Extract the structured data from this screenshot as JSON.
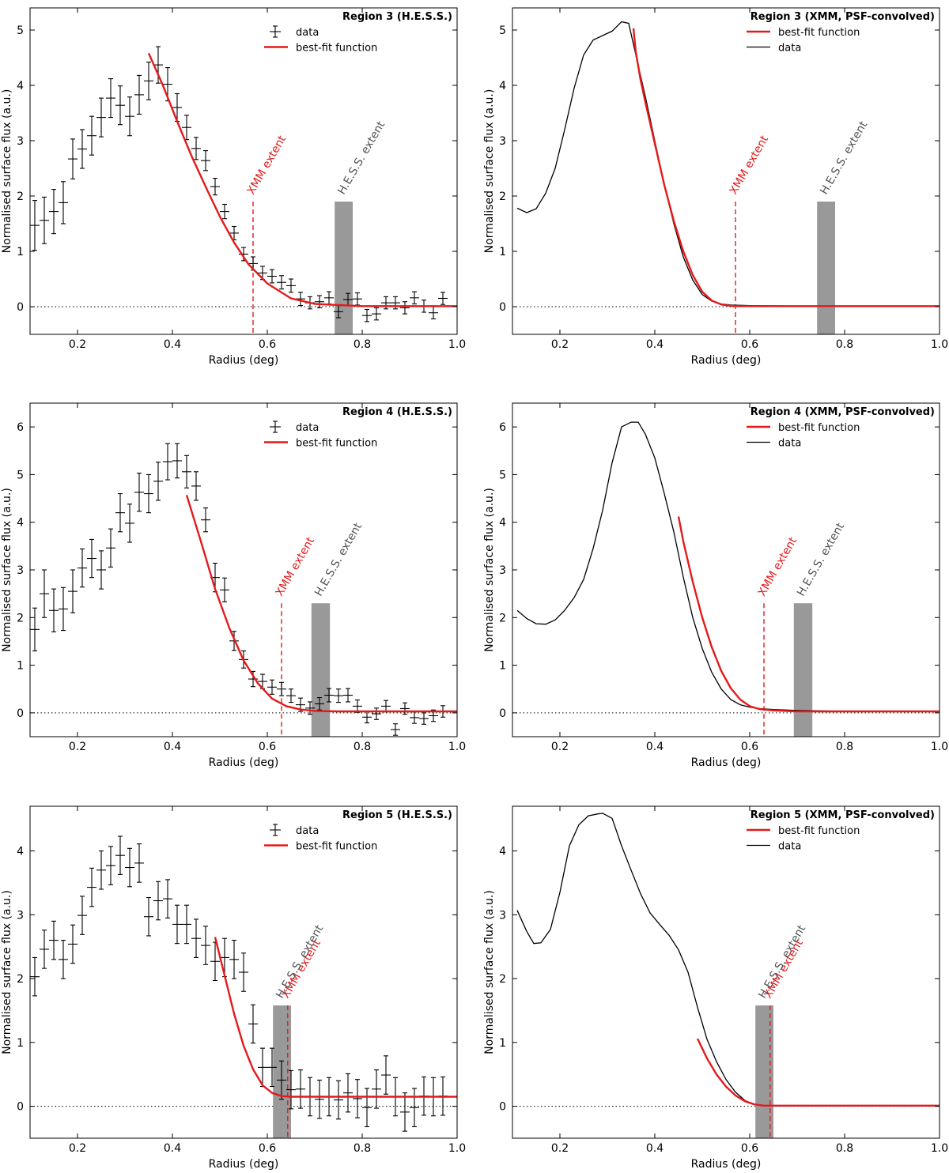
{
  "colors": {
    "fit": "#e31a1c",
    "data": "#000000",
    "band": "#999999",
    "xmm_extent": "#e31a1c",
    "hess_extent": "#555555"
  },
  "chart_data": [
    {
      "type": "scatter",
      "title": "Region 3 (H.E.S.S.)",
      "xlabel": "Radius (deg)",
      "ylabel": "Normalised surface flux (a.u.)",
      "xlim": [
        0.1,
        1.0
      ],
      "ylim": [
        -0.5,
        5.4
      ],
      "xticks": [
        "0.2",
        "0.4",
        "0.6",
        "0.8",
        "1.0"
      ],
      "yticks": [
        "0",
        "1",
        "2",
        "3",
        "4",
        "5"
      ],
      "legend": {
        "placement": "top-right",
        "entries": [
          "data",
          "best-fit function"
        ]
      },
      "data_series": {
        "name": "data",
        "xerr": 0.01,
        "x": [
          0.11,
          0.13,
          0.15,
          0.17,
          0.19,
          0.21,
          0.23,
          0.25,
          0.27,
          0.29,
          0.31,
          0.33,
          0.35,
          0.37,
          0.39,
          0.41,
          0.43,
          0.45,
          0.47,
          0.49,
          0.51,
          0.53,
          0.55,
          0.57,
          0.59,
          0.61,
          0.63,
          0.65,
          0.67,
          0.69,
          0.71,
          0.73,
          0.75,
          0.77,
          0.79,
          0.81,
          0.83,
          0.85,
          0.87,
          0.89,
          0.91,
          0.93,
          0.95,
          0.97
        ],
        "y": [
          1.47,
          1.56,
          1.72,
          1.88,
          2.67,
          2.85,
          3.09,
          3.42,
          3.77,
          3.64,
          3.44,
          3.83,
          4.08,
          4.37,
          4.02,
          3.6,
          3.24,
          2.86,
          2.64,
          2.17,
          1.72,
          1.33,
          0.95,
          0.78,
          0.61,
          0.55,
          0.44,
          0.38,
          0.14,
          0.07,
          0.09,
          0.16,
          -0.09,
          0.13,
          0.14,
          -0.16,
          -0.13,
          0.07,
          0.07,
          -0.02,
          0.16,
          0.01,
          -0.11,
          0.15
        ],
        "yerr": [
          0.45,
          0.42,
          0.4,
          0.38,
          0.36,
          0.35,
          0.35,
          0.35,
          0.35,
          0.35,
          0.35,
          0.35,
          0.34,
          0.33,
          0.3,
          0.25,
          0.22,
          0.2,
          0.18,
          0.15,
          0.13,
          0.12,
          0.12,
          0.12,
          0.12,
          0.12,
          0.12,
          0.12,
          0.12,
          0.11,
          0.11,
          0.11,
          0.11,
          0.11,
          0.11,
          0.11,
          0.11,
          0.11,
          0.11,
          0.11,
          0.11,
          0.11,
          0.11,
          0.11
        ]
      },
      "fit": {
        "name": "best-fit function",
        "x0": 0.35,
        "base": 0.01,
        "x": [
          0.35,
          0.38,
          0.41,
          0.44,
          0.47,
          0.5,
          0.53,
          0.56,
          0.6,
          0.65,
          0.7,
          0.8,
          0.9,
          1.0
        ],
        "y": [
          4.58,
          4.0,
          3.35,
          2.73,
          2.17,
          1.63,
          1.16,
          0.77,
          0.42,
          0.15,
          0.05,
          0.01,
          0.01,
          0.01
        ]
      },
      "xmm_extent": {
        "label": "XMM extent",
        "x": 0.57,
        "y_top": 1.9
      },
      "hess_extent": {
        "label": "H.E.S.S. extent",
        "x0": 0.742,
        "x1": 0.78,
        "y_top": 1.9
      }
    },
    {
      "type": "line",
      "title": "Region 3 (XMM, PSF-convolved)",
      "xlabel": "Radius (deg)",
      "ylabel": "Normalised surface flux (a.u.)",
      "xlim": [
        0.1,
        1.0
      ],
      "ylim": [
        -0.5,
        5.4
      ],
      "xticks": [
        "0.2",
        "0.4",
        "0.6",
        "0.8",
        "1.0"
      ],
      "yticks": [
        "0",
        "1",
        "2",
        "3",
        "4",
        "5"
      ],
      "legend": {
        "placement": "top-right",
        "entries": [
          "best-fit function",
          "data"
        ]
      },
      "data_series": {
        "name": "data",
        "x": [
          0.11,
          0.13,
          0.15,
          0.17,
          0.19,
          0.21,
          0.23,
          0.25,
          0.27,
          0.29,
          0.31,
          0.33,
          0.345,
          0.36,
          0.38,
          0.4,
          0.42,
          0.44,
          0.46,
          0.48,
          0.5,
          0.52,
          0.54,
          0.56,
          0.6,
          0.7,
          0.8,
          1.0
        ],
        "y": [
          1.78,
          1.7,
          1.77,
          2.05,
          2.5,
          3.2,
          3.95,
          4.55,
          4.82,
          4.9,
          4.98,
          5.15,
          5.12,
          4.55,
          3.8,
          3.0,
          2.2,
          1.5,
          0.9,
          0.48,
          0.22,
          0.1,
          0.05,
          0.03,
          0.02,
          0.01,
          0.01,
          0.01
        ]
      },
      "fit": {
        "name": "best-fit function",
        "x": [
          0.355,
          0.36,
          0.37,
          0.38,
          0.4,
          0.42,
          0.44,
          0.46,
          0.48,
          0.5,
          0.52,
          0.54,
          0.56,
          0.58,
          0.6,
          0.7,
          0.8,
          1.0
        ],
        "y": [
          5.03,
          4.6,
          4.1,
          3.7,
          2.95,
          2.2,
          1.55,
          1.0,
          0.57,
          0.27,
          0.11,
          0.04,
          0.015,
          0.01,
          0.01,
          0.01,
          0.01,
          0.01
        ]
      },
      "xmm_extent": {
        "label": "XMM extent",
        "x": 0.57,
        "y_top": 1.9
      },
      "hess_extent": {
        "label": "H.E.S.S. extent",
        "x0": 0.742,
        "x1": 0.78,
        "y_top": 1.9
      }
    },
    {
      "type": "scatter",
      "title": "Region 4 (H.E.S.S.)",
      "xlabel": "Radius (deg)",
      "ylabel": "Normalised surface flux (a.u.)",
      "xlim": [
        0.1,
        1.0
      ],
      "ylim": [
        -0.5,
        6.5
      ],
      "xticks": [
        "0.2",
        "0.4",
        "0.6",
        "0.8",
        "1.0"
      ],
      "yticks": [
        "0",
        "1",
        "2",
        "3",
        "4",
        "5",
        "6"
      ],
      "legend": {
        "placement": "top-right",
        "entries": [
          "data",
          "best-fit function"
        ]
      },
      "data_series": {
        "name": "data",
        "xerr": 0.01,
        "x": [
          0.11,
          0.13,
          0.15,
          0.17,
          0.19,
          0.21,
          0.23,
          0.25,
          0.27,
          0.29,
          0.31,
          0.33,
          0.35,
          0.37,
          0.39,
          0.41,
          0.43,
          0.45,
          0.47,
          0.49,
          0.51,
          0.53,
          0.55,
          0.57,
          0.59,
          0.61,
          0.63,
          0.65,
          0.67,
          0.69,
          0.71,
          0.73,
          0.75,
          0.77,
          0.79,
          0.81,
          0.83,
          0.85,
          0.87,
          0.89,
          0.91,
          0.93,
          0.95,
          0.97
        ],
        "y": [
          1.75,
          2.5,
          2.15,
          2.18,
          2.55,
          3.04,
          3.24,
          3.0,
          3.46,
          4.2,
          3.98,
          4.63,
          4.6,
          4.86,
          5.27,
          5.29,
          5.06,
          4.76,
          4.05,
          2.84,
          2.58,
          1.51,
          1.12,
          0.71,
          0.66,
          0.54,
          0.5,
          0.36,
          0.17,
          0.1,
          0.19,
          0.37,
          0.36,
          0.37,
          0.14,
          -0.09,
          -0.02,
          0.14,
          -0.35,
          0.09,
          -0.1,
          -0.12,
          -0.06,
          0.03
        ],
        "yerr": [
          0.45,
          0.5,
          0.45,
          0.45,
          0.45,
          0.4,
          0.4,
          0.4,
          0.4,
          0.4,
          0.4,
          0.4,
          0.4,
          0.4,
          0.38,
          0.36,
          0.34,
          0.3,
          0.25,
          0.3,
          0.25,
          0.2,
          0.18,
          0.16,
          0.15,
          0.15,
          0.14,
          0.14,
          0.14,
          0.13,
          0.13,
          0.14,
          0.14,
          0.14,
          0.13,
          0.12,
          0.12,
          0.12,
          0.12,
          0.12,
          0.12,
          0.12,
          0.12,
          0.12
        ]
      },
      "fit": {
        "name": "best-fit function",
        "x": [
          0.43,
          0.46,
          0.49,
          0.52,
          0.55,
          0.58,
          0.61,
          0.64,
          0.67,
          0.7,
          0.75,
          0.8,
          0.9,
          1.0
        ],
        "y": [
          4.57,
          3.6,
          2.6,
          1.78,
          1.1,
          0.62,
          0.3,
          0.14,
          0.07,
          0.04,
          0.03,
          0.03,
          0.03,
          0.03
        ]
      },
      "xmm_extent": {
        "label": "XMM extent",
        "x": 0.63,
        "y_top": 2.3
      },
      "hess_extent": {
        "label": "H.E.S.S. extent",
        "x0": 0.693,
        "x1": 0.732,
        "y_top": 2.3
      }
    },
    {
      "type": "line",
      "title": "Region 4 (XMM, PSF-convolved)",
      "xlabel": "Radius (deg)",
      "ylabel": "Normalised surface flux (a.u.)",
      "xlim": [
        0.1,
        1.0
      ],
      "ylim": [
        -0.5,
        6.5
      ],
      "xticks": [
        "0.2",
        "0.4",
        "0.6",
        "0.8",
        "1.0"
      ],
      "yticks": [
        "0",
        "1",
        "2",
        "3",
        "4",
        "5",
        "6"
      ],
      "legend": {
        "placement": "top-right",
        "entries": [
          "best-fit function",
          "data"
        ]
      },
      "data_series": {
        "name": "data",
        "x": [
          0.11,
          0.13,
          0.15,
          0.17,
          0.19,
          0.21,
          0.23,
          0.25,
          0.27,
          0.29,
          0.31,
          0.33,
          0.35,
          0.365,
          0.38,
          0.4,
          0.42,
          0.44,
          0.46,
          0.48,
          0.5,
          0.52,
          0.54,
          0.56,
          0.58,
          0.6,
          0.62,
          0.65,
          0.7,
          0.8,
          1.0
        ],
        "y": [
          2.15,
          1.98,
          1.87,
          1.86,
          1.95,
          2.15,
          2.42,
          2.8,
          3.45,
          4.25,
          5.25,
          6.0,
          6.1,
          6.1,
          5.85,
          5.35,
          4.6,
          3.8,
          2.85,
          2.0,
          1.35,
          0.85,
          0.5,
          0.28,
          0.17,
          0.12,
          0.09,
          0.07,
          0.05,
          0.03,
          0.03
        ]
      },
      "fit": {
        "name": "best-fit function",
        "x": [
          0.45,
          0.46,
          0.48,
          0.5,
          0.52,
          0.54,
          0.56,
          0.58,
          0.6,
          0.62,
          0.65,
          0.7,
          0.8,
          1.0
        ],
        "y": [
          4.12,
          3.6,
          2.75,
          2.0,
          1.38,
          0.88,
          0.52,
          0.28,
          0.14,
          0.08,
          0.05,
          0.03,
          0.03,
          0.03
        ]
      },
      "xmm_extent": {
        "label": "XMM extent",
        "x": 0.63,
        "y_top": 2.3
      },
      "hess_extent": {
        "label": "H.E.S.S. extent",
        "x0": 0.693,
        "x1": 0.732,
        "y_top": 2.3
      }
    },
    {
      "type": "scatter",
      "title": "Region 5 (H.E.S.S.)",
      "xlabel": "Radius (deg)",
      "ylabel": "Normalised surface flux (a.u.)",
      "xlim": [
        0.1,
        1.0
      ],
      "ylim": [
        -0.5,
        4.7
      ],
      "xticks": [
        "0.2",
        "0.4",
        "0.6",
        "0.8",
        "1.0"
      ],
      "yticks": [
        "0",
        "1",
        "2",
        "3",
        "4"
      ],
      "legend": {
        "placement": "top-right",
        "entries": [
          "data",
          "best-fit function"
        ]
      },
      "data_series": {
        "name": "data",
        "xerr": 0.01,
        "x": [
          0.11,
          0.13,
          0.15,
          0.17,
          0.19,
          0.21,
          0.23,
          0.25,
          0.27,
          0.29,
          0.31,
          0.33,
          0.35,
          0.37,
          0.39,
          0.41,
          0.43,
          0.45,
          0.47,
          0.49,
          0.51,
          0.53,
          0.55,
          0.57,
          0.59,
          0.61,
          0.63,
          0.65,
          0.67,
          0.69,
          0.71,
          0.73,
          0.75,
          0.77,
          0.79,
          0.81,
          0.83,
          0.85,
          0.87,
          0.89,
          0.91,
          0.93,
          0.95,
          0.97
        ],
        "y": [
          2.03,
          2.46,
          2.6,
          2.3,
          2.54,
          2.99,
          3.43,
          3.7,
          3.77,
          3.93,
          3.74,
          3.81,
          2.97,
          3.22,
          3.25,
          2.85,
          2.85,
          2.63,
          2.52,
          2.27,
          2.33,
          2.3,
          2.1,
          1.29,
          0.61,
          0.61,
          0.41,
          0.26,
          0.27,
          0.15,
          0.11,
          0.15,
          0.1,
          0.21,
          0.12,
          -0.02,
          0.27,
          0.49,
          0.15,
          -0.09,
          -0.02,
          0.16,
          0.15,
          0.16
        ]
      },
      "fit": {
        "name": "best-fit function",
        "x": [
          0.49,
          0.51,
          0.53,
          0.55,
          0.57,
          0.59,
          0.61,
          0.63,
          0.65,
          0.7,
          0.8,
          0.9,
          1.0
        ],
        "y": [
          2.65,
          2.05,
          1.45,
          0.95,
          0.58,
          0.33,
          0.21,
          0.16,
          0.15,
          0.15,
          0.15,
          0.15,
          0.15
        ]
      },
      "xmm_extent": {
        "label": "XMM extent",
        "x": 0.643,
        "y_top": 1.58
      },
      "hess_extent": {
        "label": "H.E.S.S. extent",
        "x0": 0.612,
        "x1": 0.65,
        "y_top": 1.58
      }
    },
    {
      "type": "line",
      "title": "Region 5 (XMM, PSF-convolved)",
      "xlabel": "Radius (deg)",
      "ylabel": "Normalised surface flux (a.u.)",
      "xlim": [
        0.1,
        1.0
      ],
      "ylim": [
        -0.5,
        4.7
      ],
      "xticks": [
        "0.2",
        "0.4",
        "0.6",
        "0.8",
        "1.0"
      ],
      "yticks": [
        "0",
        "1",
        "2",
        "3",
        "4"
      ],
      "legend": {
        "placement": "top-right",
        "entries": [
          "best-fit function",
          "data"
        ]
      },
      "data_series": {
        "name": "data",
        "x": [
          0.11,
          0.13,
          0.145,
          0.16,
          0.18,
          0.2,
          0.22,
          0.24,
          0.26,
          0.28,
          0.29,
          0.31,
          0.33,
          0.35,
          0.37,
          0.39,
          0.41,
          0.43,
          0.45,
          0.47,
          0.49,
          0.51,
          0.53,
          0.55,
          0.57,
          0.59,
          0.61,
          0.63,
          0.7,
          0.8,
          1.0
        ],
        "y": [
          3.07,
          2.74,
          2.55,
          2.56,
          2.77,
          3.35,
          4.08,
          4.41,
          4.55,
          4.58,
          4.59,
          4.51,
          4.08,
          3.7,
          3.33,
          3.03,
          2.85,
          2.68,
          2.45,
          2.1,
          1.55,
          1.05,
          0.7,
          0.42,
          0.22,
          0.09,
          0.03,
          0.01,
          0.01,
          0.01,
          0.01
        ]
      },
      "fit": {
        "name": "best-fit function",
        "x": [
          0.49,
          0.51,
          0.53,
          0.55,
          0.57,
          0.59,
          0.61,
          0.63,
          0.65,
          0.7,
          0.8,
          0.9,
          1.0
        ],
        "y": [
          1.06,
          0.75,
          0.5,
          0.31,
          0.17,
          0.08,
          0.03,
          0.01,
          0.01,
          0.01,
          0.01,
          0.01,
          0.01
        ]
      },
      "xmm_extent": {
        "label": "XMM extent",
        "x": 0.643,
        "y_top": 1.58
      },
      "hess_extent": {
        "label": "H.E.S.S. extent",
        "x0": 0.612,
        "x1": 0.65,
        "y_top": 1.58
      }
    }
  ]
}
